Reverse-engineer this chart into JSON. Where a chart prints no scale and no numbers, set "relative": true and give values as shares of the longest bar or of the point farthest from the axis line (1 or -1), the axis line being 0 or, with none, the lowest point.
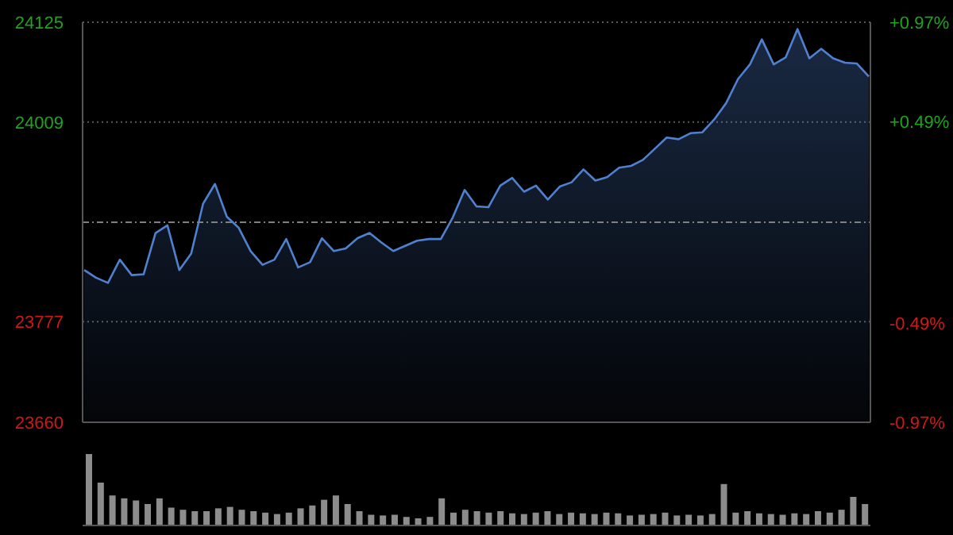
{
  "chart_data": [
    {
      "type": "area",
      "categories": [
        null,
        null,
        null,
        null,
        null,
        null,
        null,
        null,
        null,
        null,
        null,
        null,
        null,
        null,
        null,
        null,
        null,
        null,
        null,
        null,
        null,
        null,
        null,
        null,
        null,
        null,
        null,
        null,
        null,
        null,
        null,
        null,
        null,
        null,
        null,
        null,
        null,
        null,
        null,
        null,
        null,
        null,
        null,
        null,
        null,
        null,
        null,
        null,
        null,
        null,
        null,
        null,
        null,
        null,
        null,
        null,
        null,
        null,
        null,
        null,
        null,
        null,
        null,
        null,
        null,
        null,
        null
      ],
      "series": [
        {
          "color": "#4f81d0",
          "values": [
            23837,
            23828,
            23822,
            23849,
            23831,
            23832,
            23880,
            23889,
            23837,
            23856,
            23914,
            23937,
            23899,
            23886,
            23859,
            23843,
            23849,
            23873,
            23840,
            23846,
            23874,
            23859,
            23862,
            23874,
            23880,
            23869,
            23859,
            23865,
            23871,
            23873,
            23873,
            23898,
            23930,
            23911,
            23910,
            23935,
            23944,
            23928,
            23935,
            23919,
            23934,
            23939,
            23954,
            23941,
            23945,
            23956,
            23958,
            23965,
            23978,
            23991,
            23989,
            23996,
            23997,
            24012,
            24031,
            24059,
            24076,
            24105,
            24076,
            24084,
            24117,
            24083,
            24094,
            24083,
            24078,
            24077,
            24062
          ]
        }
      ],
      "ylim": [
        23660,
        24125
      ],
      "yticks": [
        23660,
        23777,
        24009,
        24125
      ],
      "y2lim": [
        -0.97,
        0.97
      ],
      "y2ticks": [
        {
          "value": -0.97,
          "label": "-0.97%"
        },
        {
          "value": -0.49,
          "label": "-0.49%"
        },
        {
          "value": 0.49,
          "label": "+0.49%"
        },
        {
          "value": 0.97,
          "label": "+0.97%"
        }
      ],
      "ref_lines": [
        {
          "axis": "y",
          "value": 23892.5,
          "line_style": "dashed",
          "color": "#808080"
        }
      ],
      "grid": "y",
      "tick_labels": "y"
    },
    {
      "type": "bar",
      "relative": true,
      "color": "#8c8c8c",
      "tick_labels": false,
      "categories": [
        null,
        null,
        null,
        null,
        null,
        null,
        null,
        null,
        null,
        null,
        null,
        null,
        null,
        null,
        null,
        null,
        null,
        null,
        null,
        null,
        null,
        null,
        null,
        null,
        null,
        null,
        null,
        null,
        null,
        null,
        null,
        null,
        null,
        null,
        null,
        null,
        null,
        null,
        null,
        null,
        null,
        null,
        null,
        null,
        null,
        null,
        null,
        null,
        null,
        null,
        null,
        null,
        null,
        null,
        null,
        null,
        null,
        null,
        null,
        null,
        null,
        null,
        null,
        null,
        null,
        null,
        null
      ],
      "values": [
        1.0,
        0.6,
        0.42,
        0.38,
        0.35,
        0.3,
        0.38,
        0.25,
        0.22,
        0.2,
        0.2,
        0.24,
        0.26,
        0.22,
        0.2,
        0.18,
        0.16,
        0.18,
        0.24,
        0.28,
        0.36,
        0.42,
        0.3,
        0.2,
        0.15,
        0.14,
        0.15,
        0.12,
        0.1,
        0.12,
        0.38,
        0.18,
        0.22,
        0.2,
        0.18,
        0.2,
        0.17,
        0.16,
        0.18,
        0.2,
        0.16,
        0.18,
        0.17,
        0.16,
        0.18,
        0.17,
        0.14,
        0.15,
        0.16,
        0.18,
        0.14,
        0.15,
        0.14,
        0.16,
        0.58,
        0.18,
        0.2,
        0.17,
        0.16,
        0.15,
        0.17,
        0.16,
        0.2,
        0.18,
        0.22,
        0.4,
        0.3
      ]
    }
  ]
}
